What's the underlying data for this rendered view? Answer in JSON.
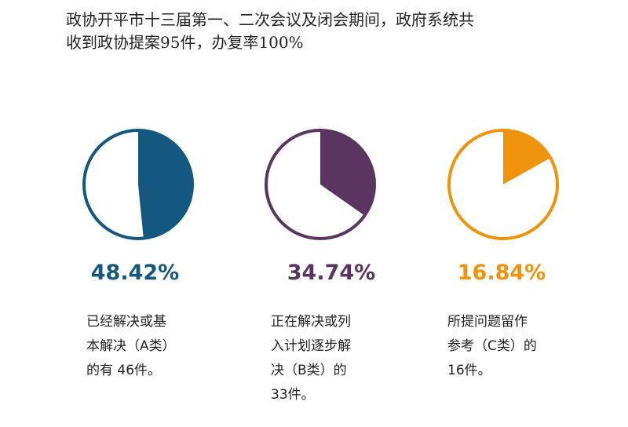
{
  "headline": {
    "line1": "政协开平市十三届第一、二次会议及闭会期间，政府系统共",
    "line2": "收到政协提案95件，办复率100%"
  },
  "chart_data": [
    {
      "type": "pie",
      "values": [
        48.42,
        51.58
      ],
      "value_label": "48.42%",
      "color": "#14587f",
      "description": [
        "已经解决或基",
        "本解决（A类）",
        "的有 46件。"
      ]
    },
    {
      "type": "pie",
      "values": [
        34.74,
        65.26
      ],
      "value_label": "34.74%",
      "color": "#5a3560",
      "description": [
        "正在解决或列",
        "入计划逐步解",
        "决（B类）的",
        "33件。"
      ]
    },
    {
      "type": "pie",
      "values": [
        16.84,
        83.16
      ],
      "value_label": "16.84%",
      "color": "#f0930c",
      "description": [
        "所提问题留作",
        "参考（C类）的",
        "16件。"
      ]
    }
  ]
}
